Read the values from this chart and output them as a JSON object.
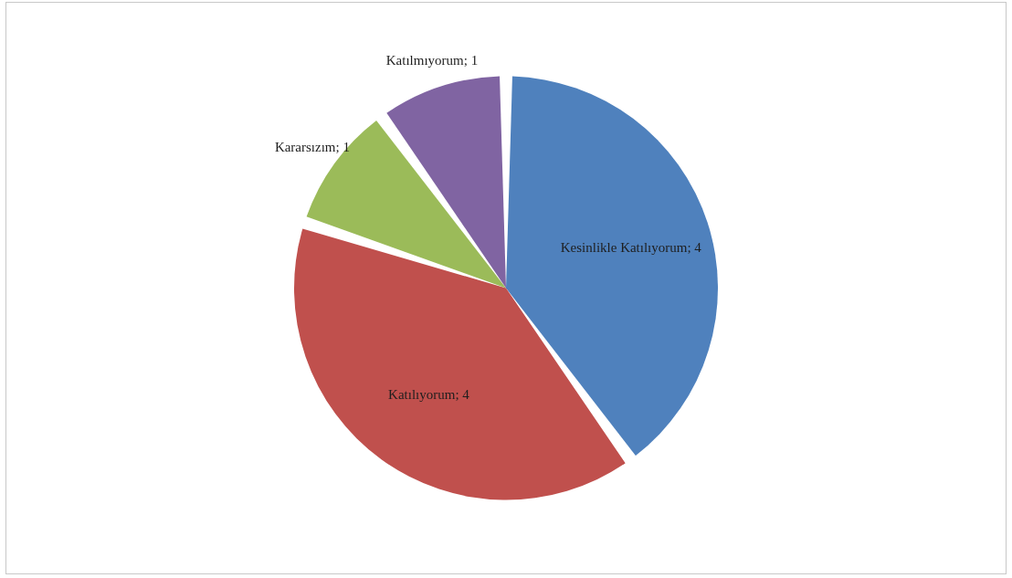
{
  "chart_data": {
    "type": "pie",
    "categories": [
      "Kesinlikle Katılıyorum; 4",
      "Katılıyorum; 4",
      "Kararsızım; 1",
      "Katılmıyorum; 1"
    ],
    "values": [
      4,
      4,
      1,
      1
    ],
    "colors": [
      "#4f81bd",
      "#c0504d",
      "#9bbb59",
      "#8064a2"
    ]
  }
}
